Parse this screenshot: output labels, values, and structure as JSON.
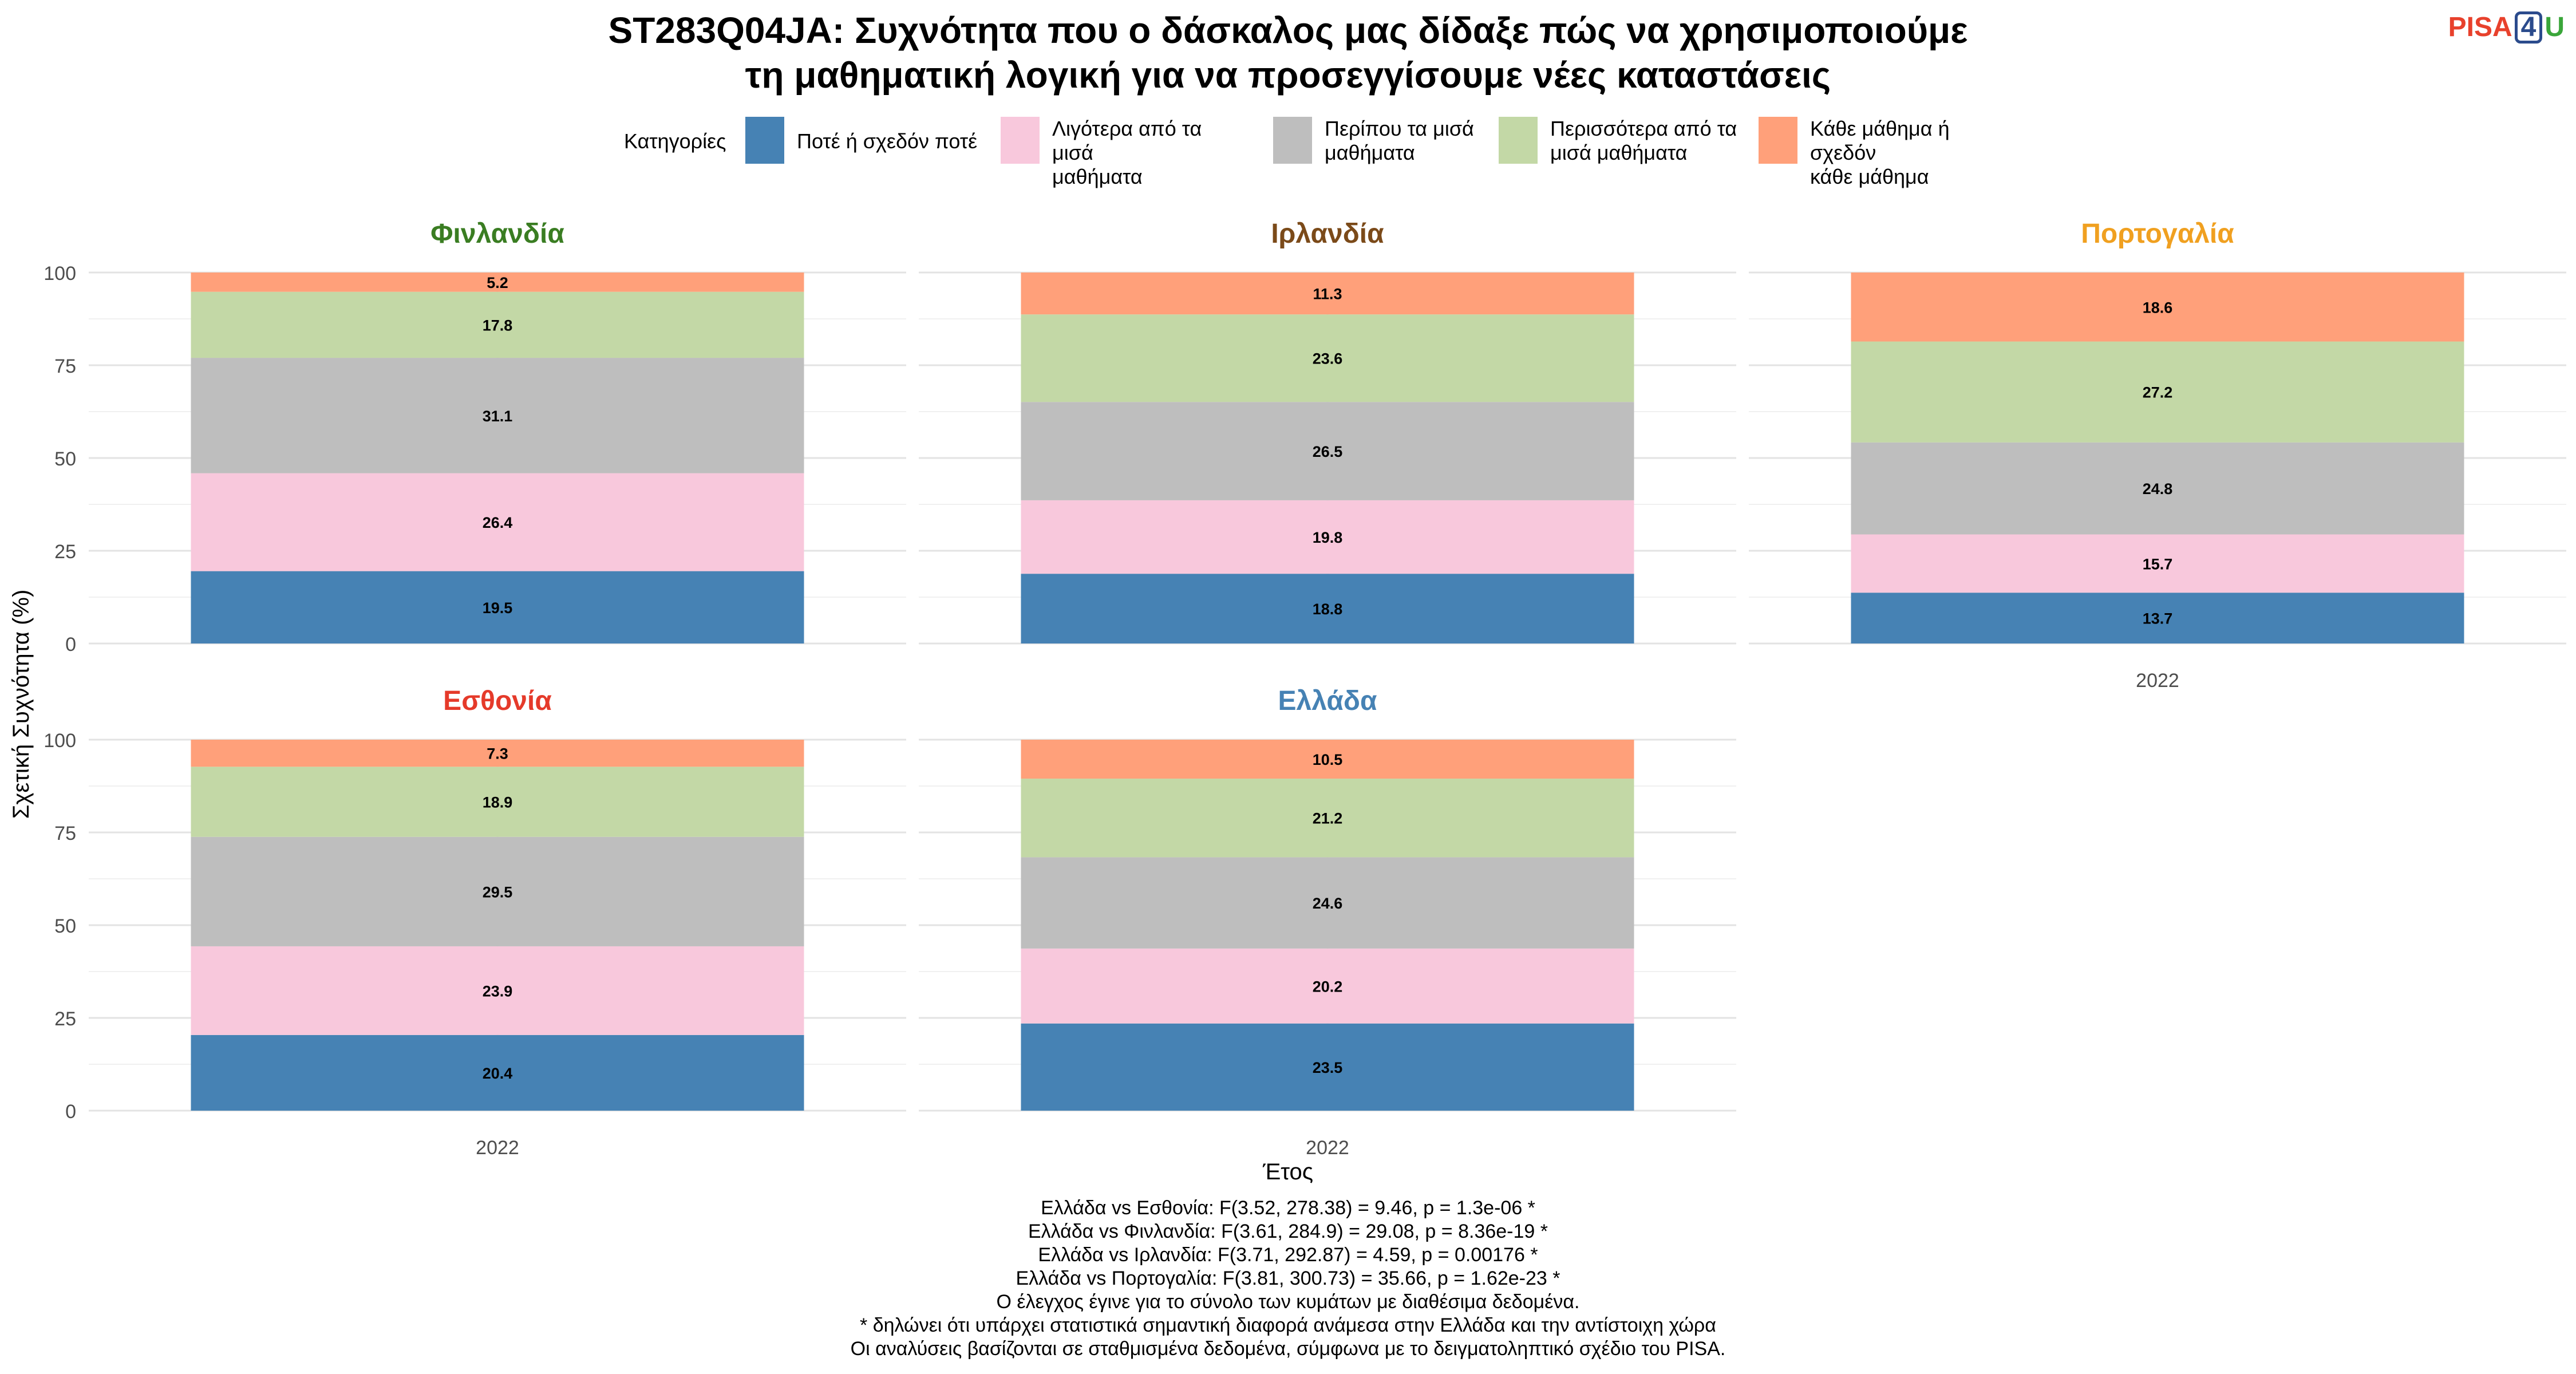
{
  "header": {
    "title_line1": "ST283Q04JA: Συχνότητα που ο δάσκαλος μας δίδαξε πώς να χρησιμοποιούμε",
    "title_line2": "τη μαθηματική λογική για να προσεγγίσουμε νέες καταστάσεις"
  },
  "logo": {
    "part1": "PISA",
    "part2": "4",
    "part3": "U"
  },
  "legend": {
    "title": "Κατηγορίες",
    "items": [
      {
        "label_line1": "Ποτέ ή σχεδόν ποτέ",
        "label_line2": "",
        "color": "#4682b4"
      },
      {
        "label_line1": "Λιγότερα από τα μισά",
        "label_line2": "μαθήματα",
        "color": "#f8c8dc"
      },
      {
        "label_line1": "Περίπου τα μισά",
        "label_line2": "μαθήματα",
        "color": "#bebebe"
      },
      {
        "label_line1": "Περισσότερα από τα",
        "label_line2": "μισά μαθήματα",
        "color": "#c3d8a6"
      },
      {
        "label_line1": "Κάθε μάθημα ή σχεδόν",
        "label_line2": "κάθε μάθημα",
        "color": "#ffa07a"
      }
    ]
  },
  "chart_data": {
    "type": "bar",
    "stacked": true,
    "ylabel": "Σχετική Συχνότητα (%)",
    "xlabel": "Έτος",
    "ylim": [
      0,
      100
    ],
    "yticks": [
      0,
      25,
      50,
      75,
      100
    ],
    "grid": true,
    "legend_position": "top",
    "series_names": [
      "Ποτέ ή σχεδόν ποτέ",
      "Λιγότερα από τα μισά μαθήματα",
      "Περίπου τα μισά μαθήματα",
      "Περισσότερα από τα μισά μαθήματα",
      "Κάθε μάθημα ή σχεδόν κάθε μάθημα"
    ],
    "panels": [
      {
        "title": "Φινλανδία",
        "title_color": "#3a7d22",
        "categories": [
          "2022"
        ],
        "values": [
          19.5,
          26.4,
          31.1,
          17.8,
          5.2
        ]
      },
      {
        "title": "Ιρλανδία",
        "title_color": "#7b4a19",
        "categories": [
          "2022"
        ],
        "values": [
          18.8,
          19.8,
          26.5,
          23.6,
          11.3
        ]
      },
      {
        "title": "Πορτογαλία",
        "title_color": "#f0a020",
        "categories": [
          "2022"
        ],
        "values": [
          13.7,
          15.7,
          24.8,
          27.2,
          18.6
        ]
      },
      {
        "title": "Εσθονία",
        "title_color": "#e53a2a",
        "categories": [
          "2022"
        ],
        "values": [
          20.4,
          23.9,
          29.5,
          18.9,
          7.3
        ]
      },
      {
        "title": "Ελλάδα",
        "title_color": "#4682b4",
        "categories": [
          "2022"
        ],
        "values": [
          23.5,
          20.2,
          24.6,
          21.2,
          10.5
        ]
      }
    ]
  },
  "notes": [
    "Ελλάδα vs Εσθονία: F(3.52, 278.38) = 9.46, p = 1.3e-06 *",
    "Ελλάδα vs Φινλανδία: F(3.61, 284.9) = 29.08, p = 8.36e-19 *",
    "Ελλάδα vs Ιρλανδία: F(3.71, 292.87) = 4.59, p = 0.00176 *",
    "Ελλάδα vs Πορτογαλία: F(3.81, 300.73) = 35.66, p = 1.62e-23 *",
    "Ο έλεγχος έγινε για το σύνολο των κυμάτων με διαθέσιμα δεδομένα.",
    "* δηλώνει ότι υπάρχει στατιστικά σημαντική διαφορά ανάμεσα στην Ελλάδα και την αντίστοιχη χώρα",
    "Οι αναλύσεις βασίζονται σε σταθμισμένα δεδομένα, σύμφωνα με το δειγματοληπτικό σχέδιο του PISA."
  ]
}
